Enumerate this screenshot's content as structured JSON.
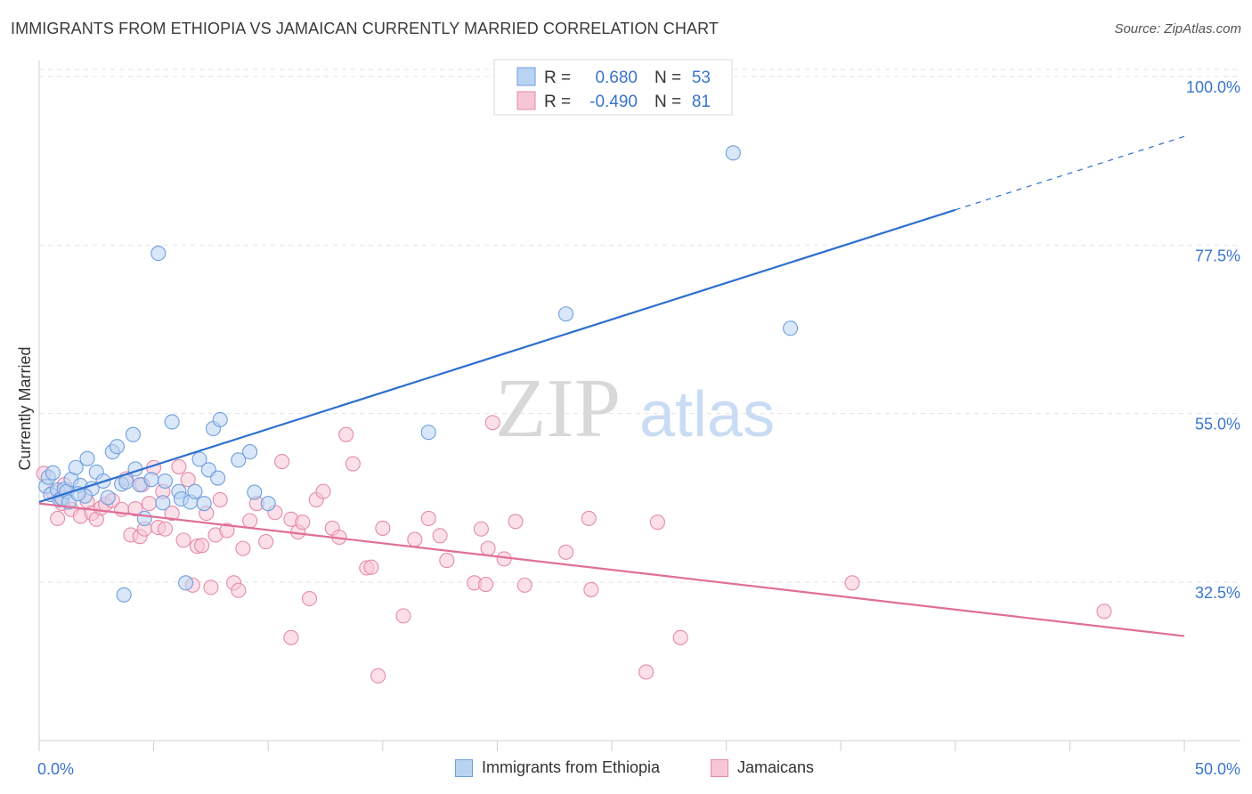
{
  "title": "IMMIGRANTS FROM ETHIOPIA VS JAMAICAN CURRENTLY MARRIED CORRELATION CHART",
  "source": "Source: ZipAtlas.com",
  "watermark": {
    "zip": "ZIP",
    "atlas": "atlas"
  },
  "colors": {
    "blue": "#6f9fde",
    "blue_fill": "#b9d3f2",
    "blue_line": "#2d6fcf",
    "pink": "#e58aa9",
    "pink_fill": "#f7c6d6",
    "pink_line": "#e06e98",
    "tick_text": "#3a74cc"
  },
  "legend_top": [
    {
      "r_label": "R =",
      "r_value": "0.680",
      "n_label": "N =",
      "n_value": "53"
    },
    {
      "r_label": "R =",
      "r_value": "-0.490",
      "n_label": "N =",
      "n_value": "81"
    }
  ],
  "legend_bottom": [
    "Immigrants from Ethiopia",
    "Jamaicans"
  ],
  "chart_data": {
    "type": "scatter",
    "ylabel": "Currently Married",
    "xlabel": "",
    "xlim": [
      0,
      50
    ],
    "ylim": [
      15,
      105
    ],
    "x_tick_labels": {
      "left": "0.0%",
      "right": "50.0%"
    },
    "y_ticks": [
      {
        "value": 100,
        "label": "100.0%"
      },
      {
        "value": 77.5,
        "label": "77.5%"
      },
      {
        "value": 55,
        "label": "55.0%"
      },
      {
        "value": 32.5,
        "label": "32.5%"
      }
    ],
    "series": [
      {
        "name": "Immigrants from Ethiopia",
        "trend": {
          "x0": 0,
          "y0": 43.2,
          "x1": 40,
          "y1": 82.2,
          "dash_to_x": 50,
          "dash_to_y": 92.0
        },
        "points": [
          [
            0.3,
            45.3
          ],
          [
            0.4,
            46.5
          ],
          [
            0.5,
            44.2
          ],
          [
            0.6,
            47.1
          ],
          [
            0.8,
            44.8
          ],
          [
            0.9,
            43.5
          ],
          [
            1.0,
            43.7
          ],
          [
            1.1,
            44.9
          ],
          [
            1.2,
            44.6
          ],
          [
            1.4,
            46.2
          ],
          [
            1.6,
            47.8
          ],
          [
            1.8,
            45.4
          ],
          [
            2.1,
            49.0
          ],
          [
            2.3,
            45.0
          ],
          [
            2.5,
            47.2
          ],
          [
            2.8,
            46.0
          ],
          [
            3.0,
            43.8
          ],
          [
            3.2,
            49.9
          ],
          [
            3.4,
            50.6
          ],
          [
            3.6,
            45.6
          ],
          [
            3.8,
            45.9
          ],
          [
            4.1,
            52.2
          ],
          [
            4.2,
            47.6
          ],
          [
            4.4,
            45.5
          ],
          [
            4.6,
            41.0
          ],
          [
            4.9,
            46.2
          ],
          [
            5.2,
            76.4
          ],
          [
            5.4,
            43.1
          ],
          [
            5.5,
            46.0
          ],
          [
            5.8,
            53.9
          ],
          [
            6.1,
            44.6
          ],
          [
            6.4,
            32.4
          ],
          [
            6.2,
            43.6
          ],
          [
            6.6,
            43.2
          ],
          [
            6.8,
            44.6
          ],
          [
            7.0,
            48.9
          ],
          [
            7.2,
            43.0
          ],
          [
            7.4,
            47.5
          ],
          [
            7.6,
            53.0
          ],
          [
            7.8,
            46.4
          ],
          [
            7.9,
            54.2
          ],
          [
            8.7,
            48.8
          ],
          [
            9.2,
            49.9
          ],
          [
            9.4,
            44.5
          ],
          [
            10.0,
            43.0
          ],
          [
            17.0,
            52.5
          ],
          [
            23.0,
            68.3
          ],
          [
            30.3,
            89.8
          ],
          [
            32.8,
            66.4
          ],
          [
            2.0,
            44.0
          ],
          [
            1.3,
            43.2
          ],
          [
            3.7,
            30.8
          ],
          [
            1.7,
            44.3
          ]
        ]
      },
      {
        "name": "Jamaicans",
        "trend": {
          "x0": 0,
          "y0": 43.0,
          "x1": 50,
          "y1": 25.3
        },
        "points": [
          [
            0.2,
            47.0
          ],
          [
            0.6,
            44.5
          ],
          [
            0.8,
            41.0
          ],
          [
            1.0,
            43.0
          ],
          [
            1.1,
            45.5
          ],
          [
            1.4,
            42.2
          ],
          [
            1.8,
            41.3
          ],
          [
            2.1,
            43.3
          ],
          [
            2.3,
            41.7
          ],
          [
            2.5,
            40.9
          ],
          [
            2.7,
            42.4
          ],
          [
            2.9,
            42.9
          ],
          [
            3.2,
            43.4
          ],
          [
            3.6,
            42.2
          ],
          [
            3.8,
            46.3
          ],
          [
            4.0,
            38.8
          ],
          [
            4.2,
            42.3
          ],
          [
            4.4,
            38.6
          ],
          [
            4.5,
            45.5
          ],
          [
            4.6,
            39.6
          ],
          [
            4.8,
            43.0
          ],
          [
            5.0,
            47.8
          ],
          [
            5.2,
            39.8
          ],
          [
            5.4,
            44.6
          ],
          [
            5.5,
            39.6
          ],
          [
            5.8,
            41.7
          ],
          [
            6.1,
            47.9
          ],
          [
            6.3,
            38.1
          ],
          [
            6.5,
            46.2
          ],
          [
            6.7,
            32.1
          ],
          [
            6.9,
            37.3
          ],
          [
            7.1,
            37.4
          ],
          [
            7.3,
            41.7
          ],
          [
            7.5,
            31.8
          ],
          [
            7.7,
            38.8
          ],
          [
            7.9,
            43.5
          ],
          [
            8.2,
            39.4
          ],
          [
            8.5,
            32.4
          ],
          [
            8.7,
            31.4
          ],
          [
            8.9,
            37.0
          ],
          [
            9.2,
            40.7
          ],
          [
            9.5,
            43.0
          ],
          [
            9.9,
            37.9
          ],
          [
            10.3,
            41.8
          ],
          [
            10.6,
            48.6
          ],
          [
            11.0,
            25.1
          ],
          [
            11.0,
            40.9
          ],
          [
            11.3,
            39.2
          ],
          [
            11.5,
            40.5
          ],
          [
            11.8,
            30.3
          ],
          [
            12.1,
            43.5
          ],
          [
            12.4,
            44.6
          ],
          [
            12.8,
            39.7
          ],
          [
            13.1,
            38.5
          ],
          [
            13.4,
            52.2
          ],
          [
            13.7,
            48.3
          ],
          [
            14.3,
            34.4
          ],
          [
            14.5,
            34.5
          ],
          [
            14.8,
            20.0
          ],
          [
            15.0,
            39.7
          ],
          [
            15.9,
            28.0
          ],
          [
            16.4,
            38.2
          ],
          [
            17.0,
            41.0
          ],
          [
            17.5,
            38.7
          ],
          [
            17.8,
            35.4
          ],
          [
            19.0,
            32.4
          ],
          [
            19.3,
            39.6
          ],
          [
            19.5,
            32.2
          ],
          [
            19.6,
            37.0
          ],
          [
            19.8,
            53.8
          ],
          [
            20.3,
            35.6
          ],
          [
            20.8,
            40.6
          ],
          [
            21.2,
            32.1
          ],
          [
            23.0,
            36.5
          ],
          [
            24.0,
            41.0
          ],
          [
            24.1,
            31.5
          ],
          [
            26.5,
            20.5
          ],
          [
            27.0,
            40.5
          ],
          [
            28.0,
            25.1
          ],
          [
            35.5,
            32.4
          ],
          [
            46.5,
            28.6
          ]
        ]
      }
    ]
  }
}
